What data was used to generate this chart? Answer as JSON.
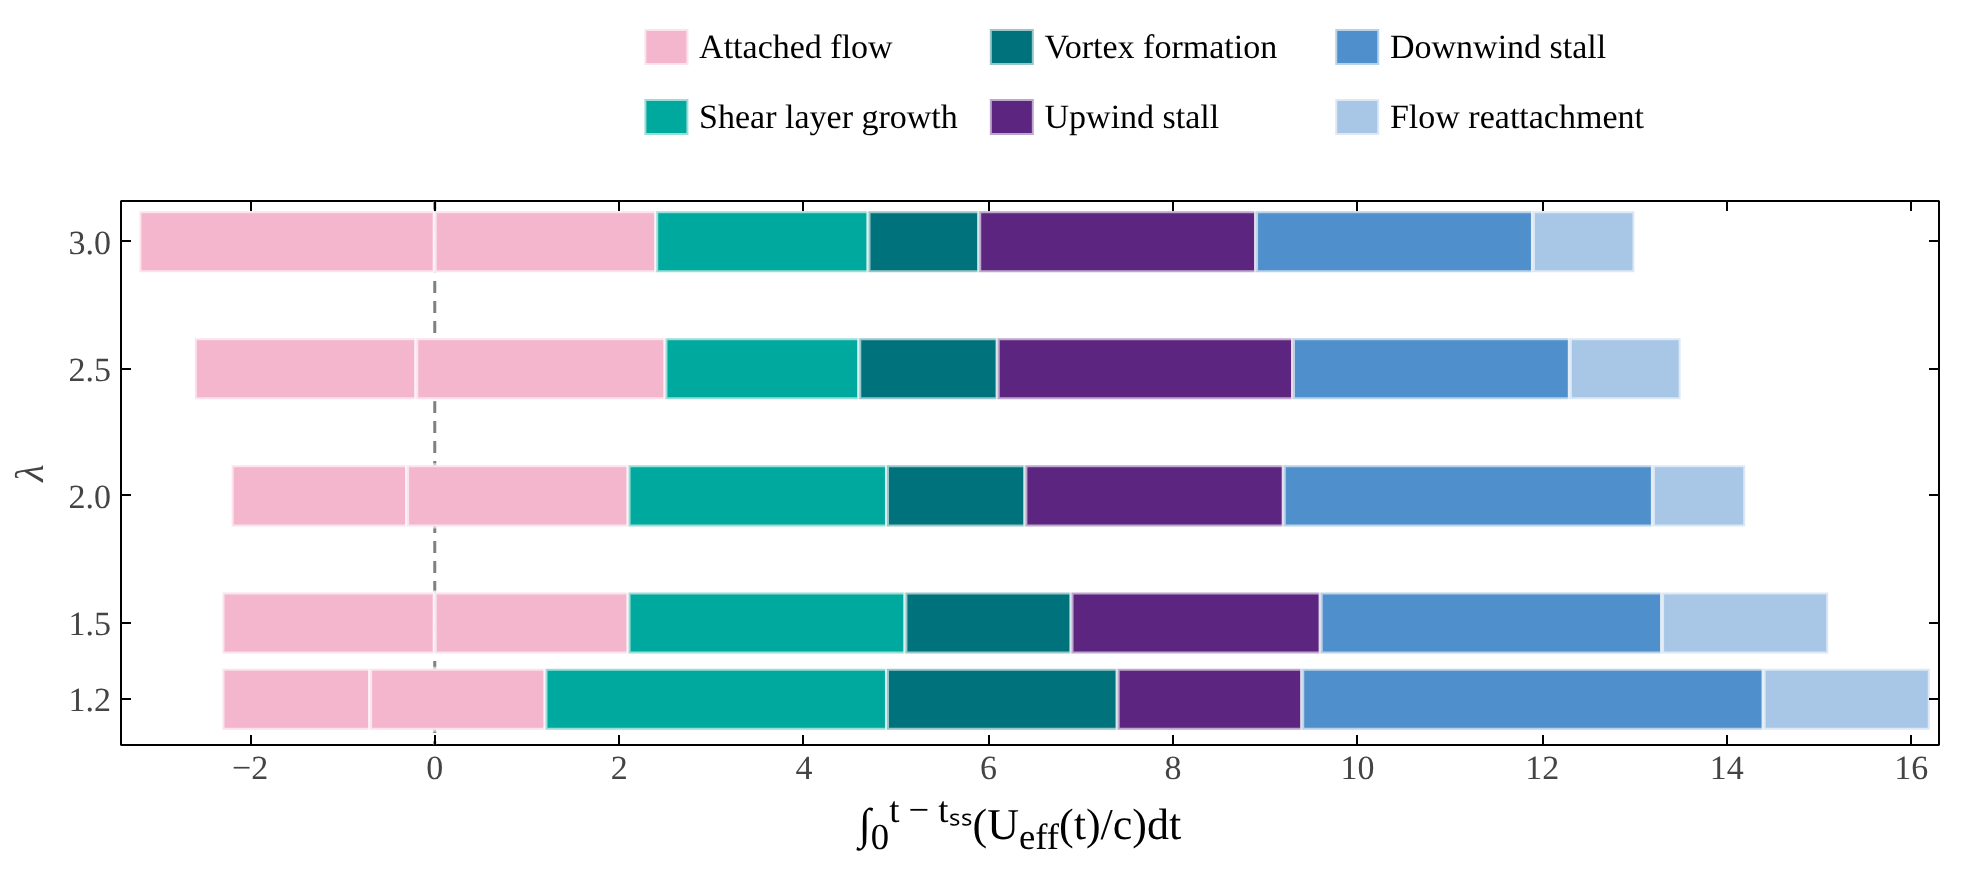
{
  "chart_data": {
    "type": "bar",
    "orientation": "horizontal",
    "x": [
      3.0,
      2.5,
      2.0,
      1.5,
      1.2
    ],
    "series": [
      {
        "color": "#f4b6cd",
        "base": [
          -3.2,
          -2.6,
          -2.2,
          -2.3,
          -2.3
        ],
        "values": [
          3.2,
          2.4,
          1.9,
          2.3,
          1.6
        ]
      },
      {
        "name": "Attached flow",
        "color": "#f4b6cd",
        "base": [
          0.0,
          -0.2,
          -0.3,
          0.0,
          -0.7
        ],
        "values": [
          2.4,
          2.7,
          2.4,
          2.1,
          1.9
        ]
      },
      {
        "name": "Shear layer growth",
        "color": "#00a99d",
        "base": [
          2.4,
          2.5,
          2.1,
          2.1,
          1.2
        ],
        "values": [
          2.3,
          2.1,
          2.8,
          3.0,
          3.7
        ]
      },
      {
        "name": "Vortex formation",
        "color": "#00727c",
        "base": [
          4.7,
          4.6,
          4.9,
          5.1,
          4.9
        ],
        "values": [
          1.2,
          1.5,
          1.5,
          1.8,
          2.5
        ]
      },
      {
        "name": "Upwind stall",
        "color": "#5b2580",
        "base": [
          5.9,
          6.1,
          6.4,
          6.9,
          7.4
        ],
        "values": [
          3.0,
          3.2,
          2.8,
          2.7,
          2.0
        ]
      },
      {
        "name": "Downwind stall",
        "color": "#4f8fcb",
        "base": [
          8.9,
          9.3,
          9.2,
          9.6,
          9.4
        ],
        "values": [
          3.0,
          3.0,
          4.0,
          3.7,
          5.0
        ]
      },
      {
        "name": "Flow reattachment",
        "color": "#a8c6e6",
        "base": [
          11.9,
          12.3,
          13.2,
          13.3,
          14.4
        ],
        "values": [
          1.1,
          1.2,
          1.0,
          1.8,
          1.8
        ]
      }
    ],
    "xlim": [
      -3.4,
      16.3
    ],
    "xticks": [
      {
        "value": -2,
        "label": "−2"
      },
      0,
      2,
      4,
      6,
      8,
      10,
      12,
      14,
      16
    ],
    "ylim": [
      1.02,
      3.16
    ],
    "yticks": [
      1.2,
      1.5,
      {
        "value": 2.0,
        "label": "2.0"
      },
      2.5,
      {
        "value": 3.0,
        "label": "3.0"
      }
    ],
    "xlabel": "∫$_{0}$$^{t − tₛₛ}$(U$_{eff}$(t)/c)dt",
    "ylabel": "λ",
    "ref_lines": [
      {
        "axis": "x",
        "value": 0,
        "color": "#808080",
        "line_style": "dashed"
      }
    ],
    "legend": "top",
    "grid": false
  }
}
